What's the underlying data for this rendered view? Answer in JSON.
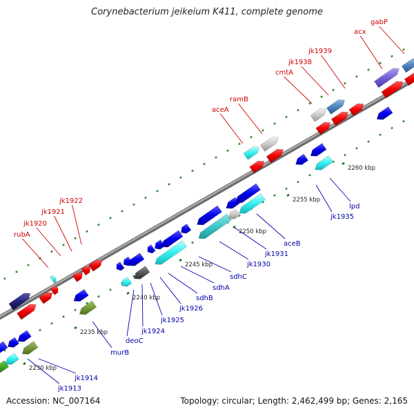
{
  "title": "Corynebacterium jeikeium K411, complete genome",
  "footer": {
    "accession": "Accession: NC_007164",
    "summary": "Topology: circular; Length: 2,462,499 bp; Genes: 2,165"
  },
  "colors": {
    "forward_label": "#cc0000",
    "reverse_label": "#0000aa",
    "backbone": "#8f8f8f",
    "tick_minor": "#2e8b2e",
    "tick_major": "#1a7a1a"
  },
  "scale_ticks": [
    {
      "label": "2230 kbp"
    },
    {
      "label": "2235 kbp"
    },
    {
      "label": "2240 kbp"
    },
    {
      "label": "2245 kbp"
    },
    {
      "label": "2250 kbp"
    },
    {
      "label": "2255 kbp"
    },
    {
      "label": "2260 kbp"
    }
  ],
  "forward_labels": [
    {
      "name": "rubA"
    },
    {
      "name": "jk1920"
    },
    {
      "name": "jk1921"
    },
    {
      "name": "jk1922"
    },
    {
      "name": "aceA"
    },
    {
      "name": "ramB"
    },
    {
      "name": "cmtA"
    },
    {
      "name": "jk1938"
    },
    {
      "name": "jk1939"
    },
    {
      "name": "acx"
    },
    {
      "name": "gabP"
    }
  ],
  "reverse_labels": [
    {
      "name": "jk1913"
    },
    {
      "name": "jk1914"
    },
    {
      "name": "murB"
    },
    {
      "name": "deoC"
    },
    {
      "name": "jk1924"
    },
    {
      "name": "jk1925"
    },
    {
      "name": "jk1926"
    },
    {
      "name": "sdhB"
    },
    {
      "name": "sdhA"
    },
    {
      "name": "sdhC"
    },
    {
      "name": "jk1930"
    },
    {
      "name": "jk1931"
    },
    {
      "name": "aceB"
    },
    {
      "name": "jk1935"
    },
    {
      "name": "lpd"
    }
  ]
}
